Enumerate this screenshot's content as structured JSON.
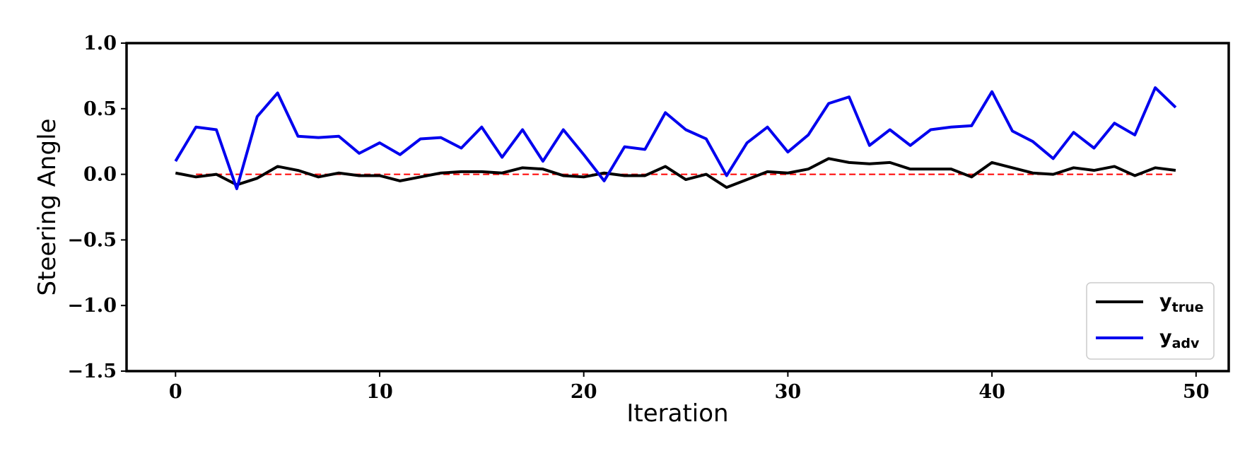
{
  "chart_data": {
    "type": "line",
    "xlabel": "Iteration",
    "ylabel": "Steering Angle",
    "xlim": [
      -2.4,
      51.6
    ],
    "ylim": [
      -1.5,
      1.0
    ],
    "xticks": [
      0,
      10,
      20,
      30,
      40,
      50
    ],
    "xtick_labels": [
      "0",
      "10",
      "20",
      "30",
      "40",
      "50"
    ],
    "yticks": [
      1.0,
      0.5,
      0.0,
      -0.5,
      -1.0,
      -1.5
    ],
    "ytick_labels": [
      "1.0",
      "0.5",
      "0.0",
      "−0.5",
      "−1.0",
      "−1.5"
    ],
    "grid": false,
    "legend_position": "bottom-right",
    "x": [
      0,
      1,
      2,
      3,
      4,
      5,
      6,
      7,
      8,
      9,
      10,
      11,
      12,
      13,
      14,
      15,
      16,
      17,
      18,
      19,
      20,
      21,
      22,
      23,
      24,
      25,
      26,
      27,
      28,
      29,
      30,
      31,
      32,
      33,
      34,
      35,
      36,
      37,
      38,
      39,
      40,
      41,
      42,
      43,
      44,
      45,
      46,
      47,
      48,
      49
    ],
    "series": [
      {
        "name": "y",
        "name_sub": "true",
        "color": "#000000",
        "values": [
          0.01,
          -0.02,
          0.0,
          -0.08,
          -0.03,
          0.06,
          0.03,
          -0.02,
          0.01,
          -0.01,
          -0.01,
          -0.05,
          -0.02,
          0.01,
          0.02,
          0.02,
          0.01,
          0.05,
          0.04,
          -0.01,
          -0.02,
          0.01,
          -0.01,
          -0.01,
          0.06,
          -0.04,
          0.0,
          -0.1,
          -0.04,
          0.02,
          0.01,
          0.04,
          0.12,
          0.09,
          0.08,
          0.09,
          0.04,
          0.04,
          0.04,
          -0.02,
          0.09,
          0.05,
          0.01,
          0.0,
          0.05,
          0.03,
          0.06,
          -0.01,
          0.05,
          0.03
        ]
      },
      {
        "name": "y",
        "name_sub": "adv",
        "color": "#0000ee",
        "values": [
          0.1,
          0.36,
          0.34,
          -0.11,
          0.44,
          0.62,
          0.29,
          0.28,
          0.29,
          0.16,
          0.24,
          0.15,
          0.27,
          0.28,
          0.2,
          0.36,
          0.13,
          0.34,
          0.1,
          0.34,
          0.15,
          -0.05,
          0.21,
          0.19,
          0.47,
          0.34,
          0.27,
          -0.01,
          0.24,
          0.36,
          0.17,
          0.3,
          0.54,
          0.59,
          0.22,
          0.34,
          0.22,
          0.34,
          0.36,
          0.37,
          0.63,
          0.33,
          0.25,
          0.12,
          0.32,
          0.2,
          0.39,
          0.3,
          0.66,
          0.51
        ]
      }
    ],
    "reference_line": {
      "y": 0.0,
      "x_range": [
        1,
        49
      ],
      "style": "dashed",
      "color": "#ff0000"
    }
  }
}
